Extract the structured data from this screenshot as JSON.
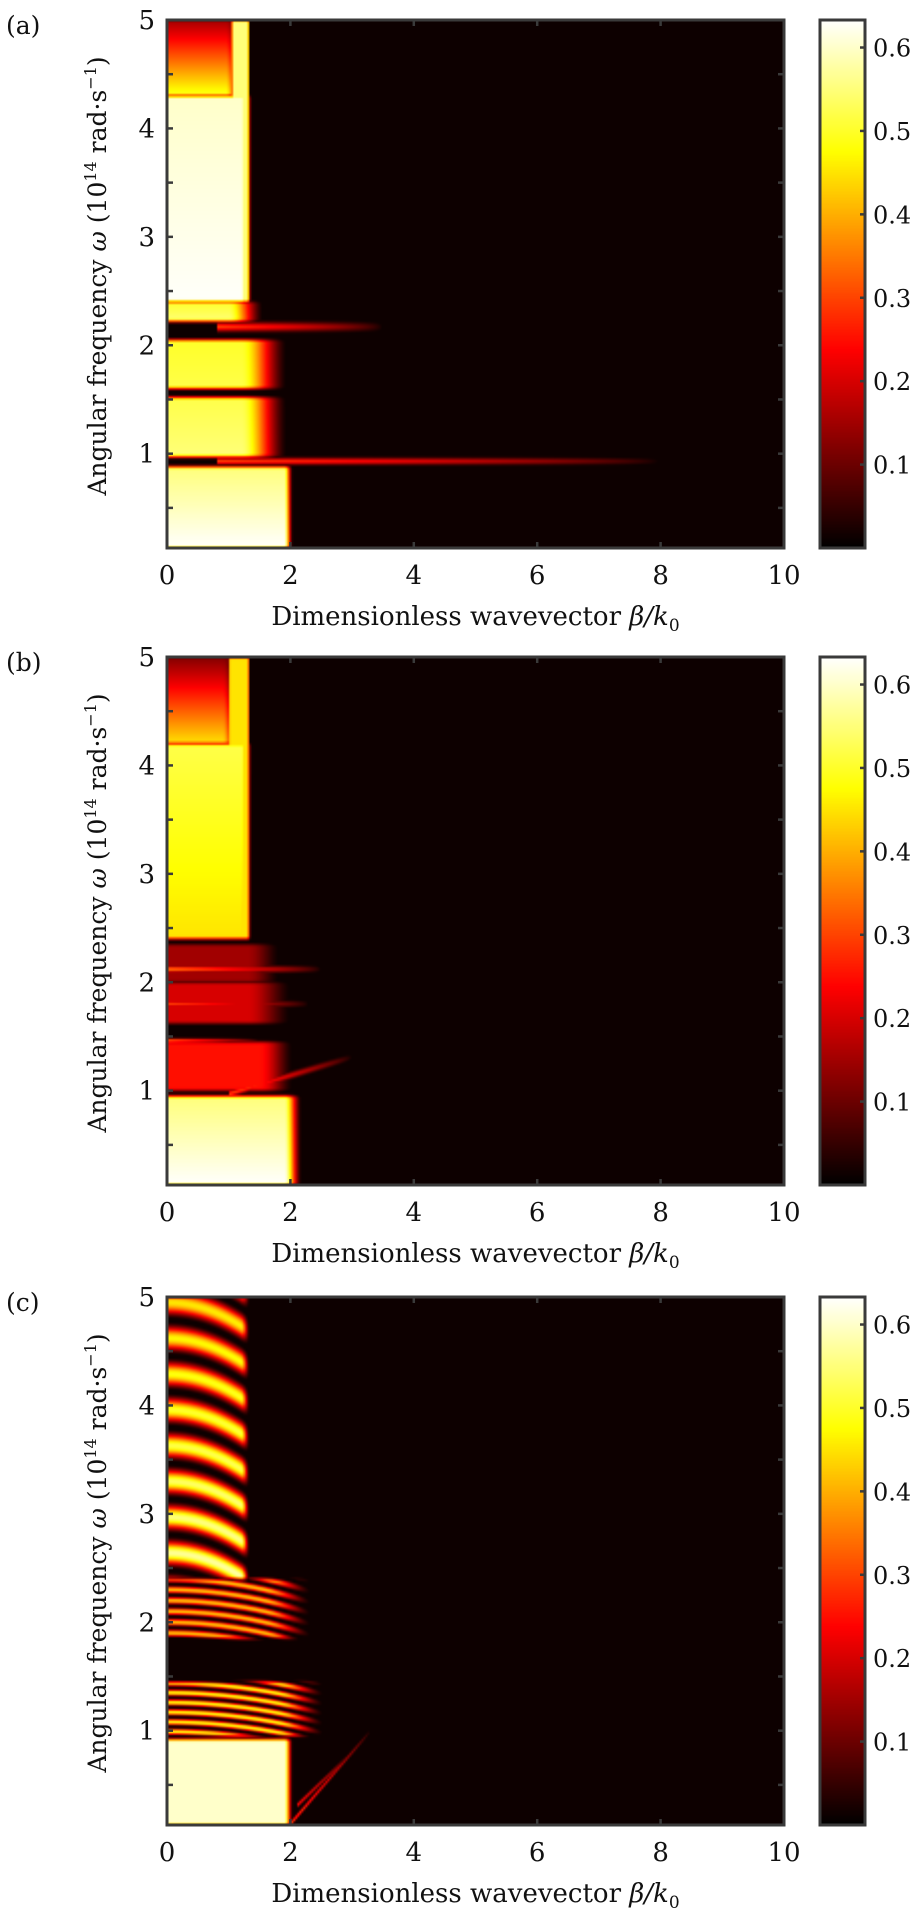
{
  "chart_data": [
    {
      "type": "heatmap",
      "panel_label": "(a)",
      "xlabel": {
        "main": "Dimensionless wavevector ",
        "sym": "β/k",
        "sub": "0"
      },
      "ylabel": {
        "main": "Angular frequency ",
        "sym": "ω",
        "open": " (10",
        "exp": "14",
        "unit": " rad·s",
        "uexp": "−1",
        "close": ")"
      },
      "xlim": [
        0,
        10
      ],
      "ylim": [
        0.13,
        5
      ],
      "clim": [
        0,
        0.633
      ],
      "xticks": [
        "0",
        "2",
        "4",
        "6",
        "8",
        "10"
      ],
      "yticks": [
        "1",
        "2",
        "3",
        "4",
        "5"
      ],
      "cbar_ticks": [
        "0.1",
        "0.2",
        "0.3",
        "0.4",
        "0.5",
        "0.6"
      ],
      "colormap": "hot",
      "regions": [
        {
          "w": [
            2.4,
            4.3
          ],
          "b": [
            0,
            1.2
          ],
          "fade": 0.2,
          "v": [
            0.63,
            0.6
          ]
        },
        {
          "w": [
            4.3,
            5.0
          ],
          "b": [
            0,
            0.95
          ],
          "fade": 0.3,
          "v": [
            0.5,
            0.15
          ]
        },
        {
          "w": [
            2.4,
            5.0
          ],
          "b": [
            1.05,
            1.3
          ],
          "fade": 0.05,
          "v": [
            0.55,
            0.55
          ]
        },
        {
          "w": [
            2.22,
            2.4
          ],
          "b": [
            0,
            1.0
          ],
          "fade": 0.6,
          "v": [
            0.55,
            0.5
          ]
        },
        {
          "w": [
            1.6,
            2.05
          ],
          "b": [
            0,
            1.2
          ],
          "fade": 0.8,
          "v": [
            0.52,
            0.5
          ]
        },
        {
          "w": [
            0.97,
            1.52
          ],
          "b": [
            0,
            1.2
          ],
          "fade": 0.8,
          "v": [
            0.55,
            0.52
          ]
        },
        {
          "w": [
            0.13,
            0.88
          ],
          "b": [
            0,
            1.9
          ],
          "fade": 0.15,
          "v": [
            0.633,
            0.55
          ]
        }
      ],
      "lines": [
        {
          "w": 0.93,
          "slope": 0,
          "b": [
            0.8,
            8
          ],
          "v": 0.3,
          "width": 0.03
        },
        {
          "w": 2.17,
          "slope": 0,
          "b": [
            0.8,
            3.5
          ],
          "v": 0.3,
          "width": 0.04
        }
      ]
    },
    {
      "type": "heatmap",
      "panel_label": "(b)",
      "xlabel": {
        "main": "Dimensionless wavevector ",
        "sym": "β/k",
        "sub": "0"
      },
      "ylabel": {
        "main": "Angular frequency ",
        "sym": "ω",
        "open": " (10",
        "exp": "14",
        "unit": " rad·s",
        "uexp": "−1",
        "close": ")"
      },
      "xlim": [
        0,
        10
      ],
      "ylim": [
        0.13,
        5
      ],
      "clim": [
        0,
        0.633
      ],
      "xticks": [
        "0",
        "2",
        "4",
        "6",
        "8",
        "10"
      ],
      "yticks": [
        "1",
        "2",
        "3",
        "4",
        "5"
      ],
      "cbar_ticks": [
        "0.1",
        "0.2",
        "0.3",
        "0.4",
        "0.5",
        "0.6"
      ],
      "colormap": "hot",
      "regions": [
        {
          "w": [
            2.4,
            4.2
          ],
          "b": [
            0,
            1.2
          ],
          "fade": 0.2,
          "v": [
            0.45,
            0.52
          ]
        },
        {
          "w": [
            4.2,
            5.0
          ],
          "b": [
            0,
            0.9
          ],
          "fade": 0.3,
          "v": [
            0.45,
            0.12
          ]
        },
        {
          "w": [
            2.4,
            5.0
          ],
          "b": [
            1.0,
            1.3
          ],
          "fade": 0.05,
          "v": [
            0.45,
            0.45
          ]
        },
        {
          "w": [
            2.0,
            2.35
          ],
          "b": [
            0,
            1.3
          ],
          "fade": 0.6,
          "v": [
            0.15,
            0.15
          ]
        },
        {
          "w": [
            1.62,
            2.0
          ],
          "b": [
            0,
            1.3
          ],
          "fade": 0.8,
          "v": [
            0.2,
            0.2
          ]
        },
        {
          "w": [
            1.0,
            1.45
          ],
          "b": [
            0,
            1.5
          ],
          "fade": 0.6,
          "v": [
            0.25,
            0.25
          ]
        },
        {
          "w": [
            0.13,
            0.95
          ],
          "b": [
            0,
            1.9
          ],
          "fade": 0.3,
          "v": [
            0.633,
            0.55
          ]
        }
      ],
      "lines": [
        {
          "w": 2.12,
          "slope": 0,
          "b": [
            0,
            2.5
          ],
          "v": 0.35,
          "width": 0.03
        },
        {
          "w": 1.8,
          "slope": 0,
          "b": [
            0,
            2.3
          ],
          "v": 0.3,
          "width": 0.03
        },
        {
          "w": 1.46,
          "slope": 0,
          "b": [
            0,
            1.5
          ],
          "v": 0.35,
          "width": 0.02
        },
        {
          "w": 0.8,
          "slope": 0.17,
          "b": [
            1.0,
            3.0
          ],
          "v": 0.3,
          "width": 0.03
        }
      ]
    },
    {
      "type": "heatmap",
      "panel_label": "(c)",
      "xlabel": {
        "main": "Dimensionless wavevector ",
        "sym": "β/k",
        "sub": "0"
      },
      "ylabel": {
        "main": "Angular frequency ",
        "sym": "ω",
        "open": " (10",
        "exp": "14",
        "unit": " rad·s",
        "uexp": "−1",
        "close": ")"
      },
      "xlim": [
        0,
        10
      ],
      "ylim": [
        0.13,
        5
      ],
      "clim": [
        0,
        0.633
      ],
      "xticks": [
        "0",
        "2",
        "4",
        "6",
        "8",
        "10"
      ],
      "yticks": [
        "1",
        "2",
        "3",
        "4",
        "5"
      ],
      "cbar_ticks": [
        "0.1",
        "0.2",
        "0.3",
        "0.4",
        "0.5",
        "0.6"
      ],
      "colormap": "hot",
      "regions": [
        {
          "w": [
            2.4,
            5.0
          ],
          "b": [
            0,
            1.2
          ],
          "fade": 0.15,
          "v": [
            0.58,
            0.45
          ],
          "stripe": 0.33,
          "bend": 0.15
        },
        {
          "w": [
            1.85,
            2.4
          ],
          "b": [
            0,
            1.6
          ],
          "fade": 0.8,
          "v": [
            0.42,
            0.42
          ],
          "stripe": 0.1,
          "bend": 0.04
        },
        {
          "w": [
            0.95,
            1.45
          ],
          "b": [
            0,
            1.8
          ],
          "fade": 0.8,
          "v": [
            0.48,
            0.48
          ],
          "stripe": 0.09,
          "bend": 0.03
        },
        {
          "w": [
            0.13,
            0.92
          ],
          "b": [
            0,
            1.9
          ],
          "fade": 0.15,
          "v": [
            0.6,
            0.6
          ]
        }
      ],
      "lines": [
        {
          "w": -1.18,
          "slope": 0.66,
          "b": [
            2.0,
            3.3
          ],
          "v": 0.3,
          "width": 0.02
        },
        {
          "w": -0.85,
          "slope": 0.55,
          "b": [
            2.1,
            3.0
          ],
          "v": 0.25,
          "width": 0.02
        }
      ]
    }
  ]
}
